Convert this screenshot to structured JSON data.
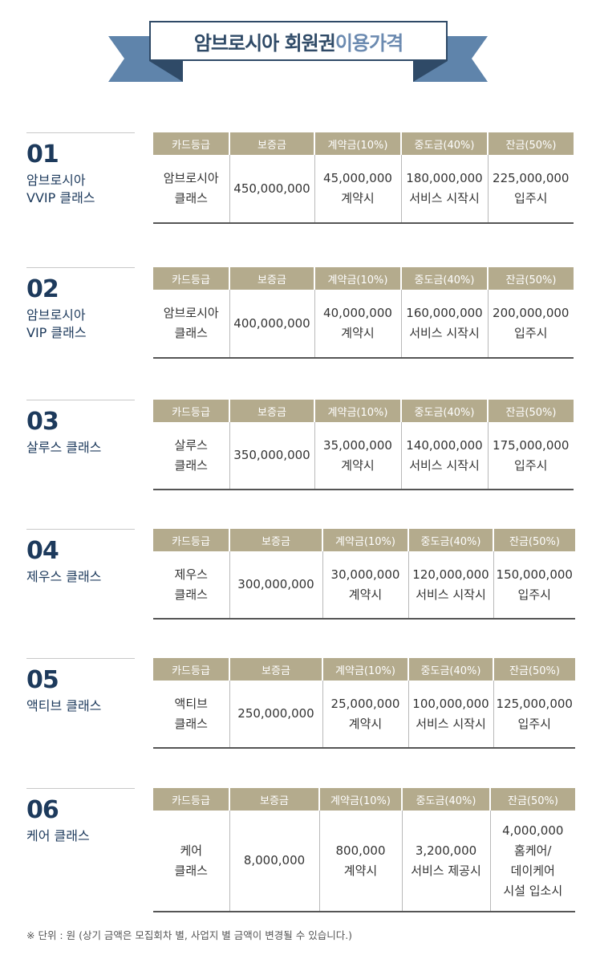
{
  "banner": {
    "title_main": "암브로시아 회원권",
    "title_highlight": "이용가격"
  },
  "table_headers": [
    "카드등급",
    "보증금",
    "계약금(10%)",
    "중도금(40%)",
    "잔금(50%)"
  ],
  "sections": [
    {
      "number": "01",
      "name": "암브로시아\nVVIP 클래스",
      "cells": [
        "암브로시아\n클래스",
        "450,000,000",
        "45,000,000\n계약시",
        "180,000,000\n서비스 시작시",
        "225,000,000\n입주시"
      ]
    },
    {
      "number": "02",
      "name": "암브로시아\nVIP 클래스",
      "cells": [
        "암브로시아\n클래스",
        "400,000,000",
        "40,000,000\n계약시",
        "160,000,000\n서비스 시작시",
        "200,000,000\n입주시"
      ]
    },
    {
      "number": "03",
      "name": "살루스 클래스",
      "cells": [
        "살루스\n클래스",
        "350,000,000",
        "35,000,000\n계약시",
        "140,000,000\n서비스 시작시",
        "175,000,000\n입주시"
      ]
    },
    {
      "number": "04",
      "name": "제우스 클래스",
      "cells": [
        "제우스\n클래스",
        "300,000,000",
        "30,000,000\n계약시",
        "120,000,000\n서비스 시작시",
        "150,000,000\n입주시"
      ]
    },
    {
      "number": "05",
      "name": "액티브 클래스",
      "cells": [
        "액티브\n클래스",
        "250,000,000",
        "25,000,000\n계약시",
        "100,000,000\n서비스 시작시",
        "125,000,000\n입주시"
      ]
    },
    {
      "number": "06",
      "name": "케어  클래스",
      "cells": [
        "케어\n클래스",
        "8,000,000",
        "800,000\n계약시",
        "3,200,000\n서비스 제공시",
        "4,000,000\n홈케어/\n데이케어\n시설 입소시"
      ]
    }
  ],
  "footnote": "※ 단위 : 원 (상기 금액은 모집회차 별, 사업지 별 금액이 변경될 수 있습니다.)",
  "colors": {
    "navy": "#1d3a5c",
    "ribbon": "#5f84ab",
    "ribbon_dark": "#2f4a67",
    "header_bg": "#b4ab8d"
  }
}
